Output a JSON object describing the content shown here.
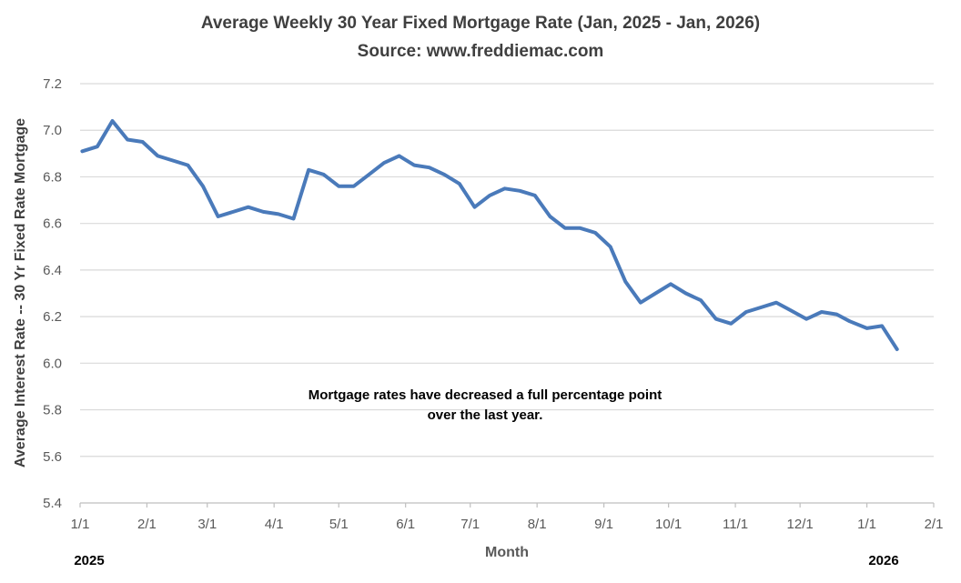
{
  "header": {
    "title": "Average Weekly 30 Year Fixed Mortgage Rate (Jan, 2025 - Jan, 2026)",
    "subtitle": "Source: www.freddiemac.com"
  },
  "annotation": {
    "lines": [
      "Mortgage rates have decreased a full percentage point",
      "over the last year."
    ]
  },
  "axes": {
    "x_title": "Month",
    "y_title": "Average Interest Rate -- 30 Yr Fixed Rate Mortgage",
    "year_left": "2025",
    "year_right": "2026"
  },
  "colors": {
    "line": "#4A7ABA",
    "gridline": "#D9D9D9",
    "axis_line": "#BFBFBF",
    "tick_text": "#595959",
    "title_text": "#3F3F3F",
    "annotation_text": "#000000"
  },
  "chart_data": {
    "type": "line",
    "title": "Average Weekly 30 Year Fixed Mortgage Rate (Jan, 2025 - Jan, 2026)",
    "subtitle": "Source: www.freddiemac.com",
    "xlabel": "Month",
    "ylabel": "Average Interest Rate -- 30 Yr Fixed Rate Mortgage",
    "ylim": [
      5.4,
      7.2
    ],
    "y_ticks": [
      5.4,
      5.6,
      5.8,
      6.0,
      6.2,
      6.4,
      6.6,
      6.8,
      7.0,
      7.2
    ],
    "grid": true,
    "legend": false,
    "x_start": "2025-01-01",
    "x_end": "2026-02-01",
    "month_ticks": [
      {
        "date": "2025-01-01",
        "label": "1/1"
      },
      {
        "date": "2025-02-01",
        "label": "2/1"
      },
      {
        "date": "2025-03-01",
        "label": "3/1"
      },
      {
        "date": "2025-04-01",
        "label": "4/1"
      },
      {
        "date": "2025-05-01",
        "label": "5/1"
      },
      {
        "date": "2025-06-01",
        "label": "6/1"
      },
      {
        "date": "2025-07-01",
        "label": "7/1"
      },
      {
        "date": "2025-08-01",
        "label": "8/1"
      },
      {
        "date": "2025-09-01",
        "label": "9/1"
      },
      {
        "date": "2025-10-01",
        "label": "10/1"
      },
      {
        "date": "2025-11-01",
        "label": "11/1"
      },
      {
        "date": "2025-12-01",
        "label": "12/1"
      },
      {
        "date": "2026-01-01",
        "label": "1/1"
      },
      {
        "date": "2026-02-01",
        "label": "2/1"
      }
    ],
    "series": [
      {
        "name": "30 Yr Fixed Rate Mortgage",
        "points": [
          {
            "date": "2025-01-02",
            "value": 6.91
          },
          {
            "date": "2025-01-09",
            "value": 6.93
          },
          {
            "date": "2025-01-16",
            "value": 7.04
          },
          {
            "date": "2025-01-23",
            "value": 6.96
          },
          {
            "date": "2025-01-30",
            "value": 6.95
          },
          {
            "date": "2025-02-06",
            "value": 6.89
          },
          {
            "date": "2025-02-13",
            "value": 6.87
          },
          {
            "date": "2025-02-20",
            "value": 6.85
          },
          {
            "date": "2025-02-27",
            "value": 6.76
          },
          {
            "date": "2025-03-06",
            "value": 6.63
          },
          {
            "date": "2025-03-13",
            "value": 6.65
          },
          {
            "date": "2025-03-20",
            "value": 6.67
          },
          {
            "date": "2025-03-27",
            "value": 6.65
          },
          {
            "date": "2025-04-03",
            "value": 6.64
          },
          {
            "date": "2025-04-10",
            "value": 6.62
          },
          {
            "date": "2025-04-17",
            "value": 6.83
          },
          {
            "date": "2025-04-24",
            "value": 6.81
          },
          {
            "date": "2025-05-01",
            "value": 6.76
          },
          {
            "date": "2025-05-08",
            "value": 6.76
          },
          {
            "date": "2025-05-15",
            "value": 6.81
          },
          {
            "date": "2025-05-22",
            "value": 6.86
          },
          {
            "date": "2025-05-29",
            "value": 6.89
          },
          {
            "date": "2025-06-05",
            "value": 6.85
          },
          {
            "date": "2025-06-12",
            "value": 6.84
          },
          {
            "date": "2025-06-19",
            "value": 6.81
          },
          {
            "date": "2025-06-26",
            "value": 6.77
          },
          {
            "date": "2025-07-03",
            "value": 6.67
          },
          {
            "date": "2025-07-10",
            "value": 6.72
          },
          {
            "date": "2025-07-17",
            "value": 6.75
          },
          {
            "date": "2025-07-24",
            "value": 6.74
          },
          {
            "date": "2025-07-31",
            "value": 6.72
          },
          {
            "date": "2025-08-07",
            "value": 6.63
          },
          {
            "date": "2025-08-14",
            "value": 6.58
          },
          {
            "date": "2025-08-21",
            "value": 6.58
          },
          {
            "date": "2025-08-28",
            "value": 6.56
          },
          {
            "date": "2025-09-04",
            "value": 6.5
          },
          {
            "date": "2025-09-11",
            "value": 6.35
          },
          {
            "date": "2025-09-18",
            "value": 6.26
          },
          {
            "date": "2025-09-25",
            "value": 6.3
          },
          {
            "date": "2025-10-02",
            "value": 6.34
          },
          {
            "date": "2025-10-09",
            "value": 6.3
          },
          {
            "date": "2025-10-16",
            "value": 6.27
          },
          {
            "date": "2025-10-23",
            "value": 6.19
          },
          {
            "date": "2025-10-30",
            "value": 6.17
          },
          {
            "date": "2025-11-06",
            "value": 6.22
          },
          {
            "date": "2025-11-13",
            "value": 6.24
          },
          {
            "date": "2025-11-20",
            "value": 6.26
          },
          {
            "date": "2025-11-26",
            "value": 6.23
          },
          {
            "date": "2025-12-04",
            "value": 6.19
          },
          {
            "date": "2025-12-11",
            "value": 6.22
          },
          {
            "date": "2025-12-18",
            "value": 6.21
          },
          {
            "date": "2025-12-24",
            "value": 6.18
          },
          {
            "date": "2026-01-01",
            "value": 6.15
          },
          {
            "date": "2026-01-08",
            "value": 6.16
          },
          {
            "date": "2026-01-15",
            "value": 6.06
          }
        ]
      }
    ]
  }
}
